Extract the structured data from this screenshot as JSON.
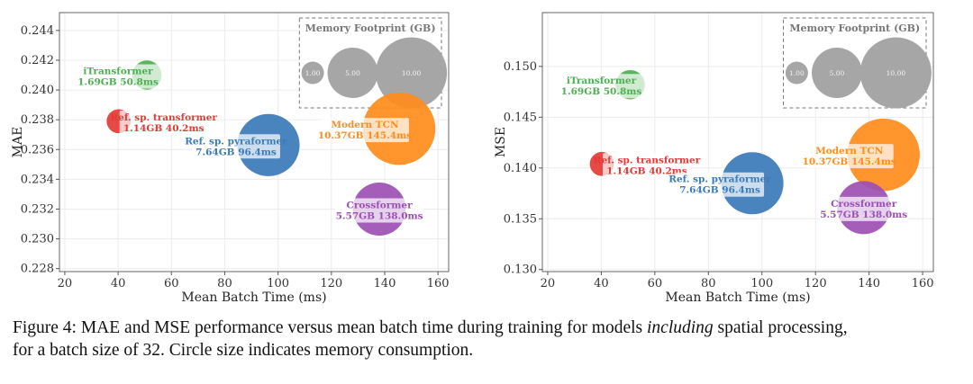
{
  "chart_data": [
    {
      "type": "scatter",
      "ylabel": "MAE",
      "xlabel": "Mean Batch Time (ms)",
      "xlim": [
        18,
        164
      ],
      "ylim": [
        0.2278,
        0.2452
      ],
      "xticks": [
        20,
        40,
        60,
        80,
        100,
        120,
        140,
        160
      ],
      "xtick_labels": [
        "20",
        "40",
        "60",
        "80",
        "100",
        "120",
        "140",
        "160"
      ],
      "yticks": [
        0.228,
        0.23,
        0.232,
        0.234,
        0.236,
        0.238,
        0.24,
        0.242,
        0.244
      ],
      "ytick_labels": [
        "0.228",
        "0.230",
        "0.232",
        "0.234",
        "0.236",
        "0.238",
        "0.240",
        "0.242",
        "0.244"
      ],
      "grid": true,
      "legend": {
        "title": "Memory Footprint (GB)",
        "sizes": [
          1.0,
          5.0,
          10.0
        ],
        "labels": [
          "1.00",
          "5.00",
          "10.00"
        ],
        "placement": "top-right"
      },
      "points": [
        {
          "name": "iTransformer",
          "memory_gb": 1.69,
          "x": 50.8,
          "y": 0.241,
          "color": "#4caf50",
          "line1": "iTransformer",
          "line2": "1.69GB 50.8ms",
          "label_side": "left"
        },
        {
          "name": "Ref. sp. transformer",
          "memory_gb": 1.14,
          "x": 40.2,
          "y": 0.2379,
          "color": "#e53935",
          "line1": "Ref. sp. transformer",
          "line2": "1.14GB 40.2ms",
          "label_side": "right"
        },
        {
          "name": "Ref. sp. pyraformer",
          "memory_gb": 7.64,
          "x": 96.4,
          "y": 0.2363,
          "color": "#3a7ab8",
          "line1": "Ref. sp. pyraformer",
          "line2": "7.64GB 96.4ms",
          "label_side": "left"
        },
        {
          "name": "Modern TCN",
          "memory_gb": 10.37,
          "x": 145.4,
          "y": 0.2374,
          "color": "#ff8c1a",
          "line1": "Modern TCN",
          "line2": "10.37GB 145.4ms",
          "label_side": "left"
        },
        {
          "name": "Crossformer",
          "memory_gb": 5.57,
          "x": 138.0,
          "y": 0.232,
          "color": "#9c4fb3",
          "line1": "Crossformer",
          "line2": "5.57GB 138.0ms",
          "label_side": "center"
        }
      ]
    },
    {
      "type": "scatter",
      "ylabel": "MSE",
      "xlabel": "Mean Batch Time (ms)",
      "xlim": [
        18,
        164
      ],
      "ylim": [
        0.1298,
        0.1553
      ],
      "xticks": [
        20,
        40,
        60,
        80,
        100,
        120,
        140,
        160
      ],
      "xtick_labels": [
        "20",
        "40",
        "60",
        "80",
        "100",
        "120",
        "140",
        "160"
      ],
      "yticks": [
        0.13,
        0.135,
        0.14,
        0.145,
        0.15
      ],
      "ytick_labels": [
        "0.130",
        "0.135",
        "0.140",
        "0.145",
        "0.150"
      ],
      "grid": true,
      "legend": {
        "title": "Memory Footprint (GB)",
        "sizes": [
          1.0,
          5.0,
          10.0
        ],
        "labels": [
          "1.00",
          "5.00",
          "10.00"
        ],
        "placement": "top-right"
      },
      "points": [
        {
          "name": "iTransformer",
          "memory_gb": 1.69,
          "x": 50.8,
          "y": 0.1482,
          "color": "#4caf50",
          "line1": "iTransformer",
          "line2": "1.69GB 50.8ms",
          "label_side": "left"
        },
        {
          "name": "Ref. sp. transformer",
          "memory_gb": 1.14,
          "x": 40.2,
          "y": 0.1404,
          "color": "#e53935",
          "line1": "Ref. sp. transformer",
          "line2": "1.14GB 40.2ms",
          "label_side": "right"
        },
        {
          "name": "Ref. sp. pyraformer",
          "memory_gb": 7.64,
          "x": 96.4,
          "y": 0.1385,
          "color": "#3a7ab8",
          "line1": "Ref. sp. pyraformer",
          "line2": "7.64GB 96.4ms",
          "label_side": "left"
        },
        {
          "name": "Modern TCN",
          "memory_gb": 10.37,
          "x": 145.4,
          "y": 0.1413,
          "color": "#ff8c1a",
          "line1": "Modern TCN",
          "line2": "10.37GB 145.4ms",
          "label_side": "left"
        },
        {
          "name": "Crossformer",
          "memory_gb": 5.57,
          "x": 138.0,
          "y": 0.1361,
          "color": "#9c4fb3",
          "line1": "Crossformer",
          "line2": "5.57GB 138.0ms",
          "label_side": "center"
        }
      ]
    }
  ],
  "caption": {
    "line1_pre": "Figure 4: MAE and MSE performance versus mean batch time during training for models ",
    "line1_em": "including",
    "line1_post": " spatial processing,",
    "line2": "for a batch size of 32. Circle size indicates memory consumption."
  }
}
